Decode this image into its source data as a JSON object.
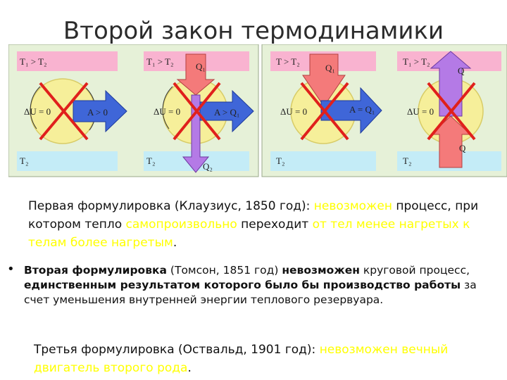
{
  "slide": {
    "title": "Второй закон термодинамики"
  },
  "figure": {
    "panels": [
      {
        "top_label": "T₁ > T₂",
        "bottom_label": "T₂",
        "du": "ΔU = 0",
        "work": "A > 0",
        "q_top": "",
        "q_bottom": "",
        "q_big": ""
      },
      {
        "top_label": "T₁ > T₂",
        "bottom_label": "T₂",
        "du": "ΔU = 0",
        "work": "A > Q₁",
        "q_top": "Q₁",
        "q_bottom": "Q₂",
        "q_big": ""
      },
      {
        "top_label": "T > T₂",
        "bottom_label": "T₂",
        "du": "ΔU = 0",
        "work": "A = Q₁",
        "q_top": "Q₁",
        "q_bottom": "",
        "q_big": ""
      },
      {
        "top_label": "T₁ > T₂",
        "bottom_label": "T₂",
        "du": "ΔU = 0",
        "work": "",
        "q_top": "",
        "q_bottom": "Q",
        "q_big": "Q"
      }
    ],
    "colors": {
      "hot": "#f9b3d0",
      "cold": "#c4ecf7",
      "panel_bg": "#e6f1d8",
      "circle": "#f6ef9a",
      "arrow_blue": "#3f66d8",
      "arrow_red": "#f47a7a",
      "arrow_violet": "#b47ae6",
      "cross": "#e0201c"
    }
  },
  "text": {
    "f1": {
      "part1": "Первая формулировка (Клаузиус, 1850 год): ",
      "part2": "невозможен",
      "part3": " процесс, при котором тепло ",
      "part4": "самопроизвольно",
      "part5": " переходит ",
      "part6": "от тел менее нагретых к телам более нагретым",
      "part7": "."
    },
    "f2": {
      "bullet": "•",
      "part1": "Вторая формулировка",
      "part2": " (Томсон, 1851 год) ",
      "part3": "невозможен",
      "part4": " круговой процесс, ",
      "part5": "единственным результатом которого было бы производство работы",
      "part6": " за счет уменьшения внутренней энергии теплового резервуара."
    },
    "f3": {
      "part1": "Третья формулировка (Оствальд, 1901 год): ",
      "part2": "невозможен вечный двигатель второго рода",
      "part3": "."
    }
  }
}
